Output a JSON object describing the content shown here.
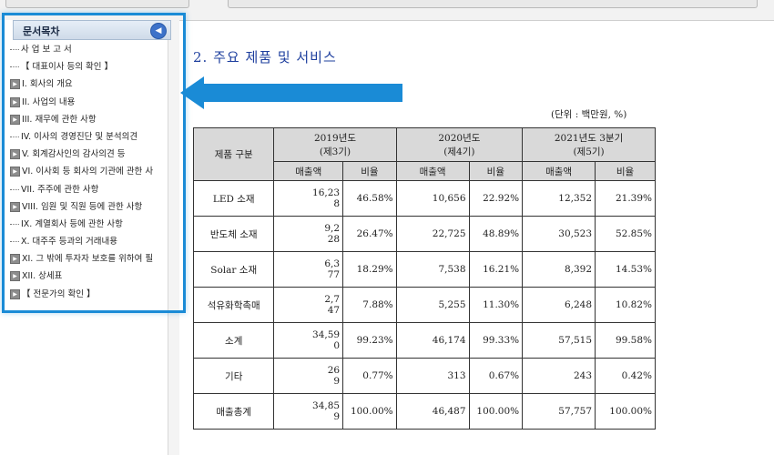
{
  "toc": {
    "title": "문서목차",
    "collapse_icon": "chevron-left-icon",
    "items": [
      {
        "label": "사 업 보 고 서",
        "expandable": false
      },
      {
        "label": "【 대표이사 등의 확인 】",
        "expandable": false
      },
      {
        "label": "I. 회사의 개요",
        "expandable": true
      },
      {
        "label": "II. 사업의 내용",
        "expandable": true
      },
      {
        "label": "III. 재무에 관한 사항",
        "expandable": true
      },
      {
        "label": "IV. 이사의 경영진단 및 분석의견",
        "expandable": false
      },
      {
        "label": "V. 회계감사인의 감사의견 등",
        "expandable": true
      },
      {
        "label": "VI. 이사회 등 회사의 기관에 관한 사",
        "expandable": true
      },
      {
        "label": "VII. 주주에 관한 사항",
        "expandable": false
      },
      {
        "label": "VIII. 임원 및 직원 등에 관한 사항",
        "expandable": true
      },
      {
        "label": "IX. 계열회사 등에 관한 사항",
        "expandable": false
      },
      {
        "label": "X. 대주주 등과의 거래내용",
        "expandable": false
      },
      {
        "label": "XI. 그 밖에 투자자 보호를 위하여 필",
        "expandable": true
      },
      {
        "label": "XII. 상세표",
        "expandable": true
      },
      {
        "label": "【 전문가의 확인 】",
        "expandable": true
      }
    ]
  },
  "annotation": {
    "arrow_color": "#1a8bd6",
    "highlight_color": "#1a8bd6"
  },
  "doc": {
    "heading": "2. 주요 제품 및 서비스",
    "unit": "(단위 : 백만원, %)",
    "table": {
      "col_product": "제품 구분",
      "periods": [
        {
          "year": "2019년도",
          "term": "(제3기)"
        },
        {
          "year": "2020년도",
          "term": "(제4기)"
        },
        {
          "year": "2021년도 3분기",
          "term": "(제5기)"
        }
      ],
      "sub_amount": "매출액",
      "sub_ratio": "비율",
      "rows": [
        {
          "name": "LED 소재",
          "v": [
            "16,23\n8",
            "46.58%",
            "10,656",
            "22.92%",
            "12,352",
            "21.39%"
          ]
        },
        {
          "name": "반도체 소재",
          "v": [
            "9,2\n28",
            "26.47%",
            "22,725",
            "48.89%",
            "30,523",
            "52.85%"
          ]
        },
        {
          "name": "Solar 소재",
          "v": [
            "6,3\n77",
            "18.29%",
            "7,538",
            "16.21%",
            "8,392",
            "14.53%"
          ]
        },
        {
          "name": "석유화학촉매",
          "v": [
            "2,7\n47",
            "7.88%",
            "5,255",
            "11.30%",
            "6,248",
            "10.82%"
          ]
        },
        {
          "name": "소계",
          "v": [
            "34,59\n0",
            "99.23%",
            "46,174",
            "99.33%",
            "57,515",
            "99.58%"
          ]
        },
        {
          "name": "기타",
          "v": [
            "26\n9",
            "0.77%",
            "313",
            "0.67%",
            "243",
            "0.42%"
          ]
        },
        {
          "name": "매출총계",
          "v": [
            "34,85\n9",
            "100.00%",
            "46,487",
            "100.00%",
            "57,757",
            "100.00%"
          ]
        }
      ]
    }
  }
}
